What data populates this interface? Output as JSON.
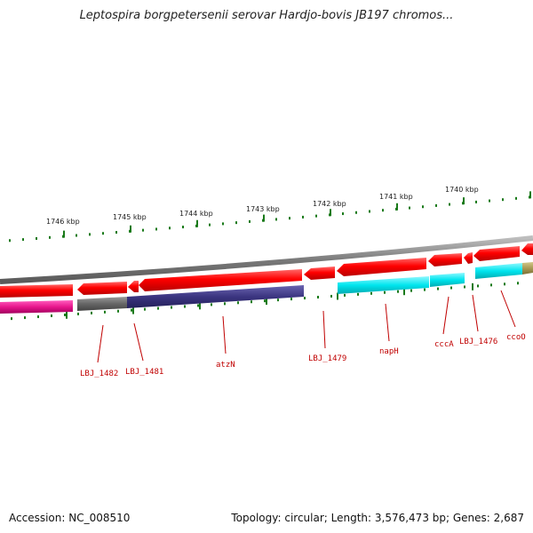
{
  "title": "Leptospira borgpetersenii serovar Hardjo-bovis JB197 chromos...",
  "footer": {
    "accession": "Accession: NC_008510",
    "summary": "Topology: circular; Length: 3,576,473 bp; Genes: 2,687"
  },
  "ruler_labels": [
    "1746 kbp",
    "1745 kbp",
    "1744 kbp",
    "1743 kbp",
    "1742 kbp",
    "1741 kbp",
    "1740 kbp"
  ],
  "gene_labels": [
    "LBJ_1482",
    "LBJ_1481",
    "atzN",
    "LBJ_1479",
    "napH",
    "cccA",
    "LBJ_1476",
    "ccoO"
  ],
  "colors": {
    "cds": "#ee1111",
    "backbone": "#888888",
    "ruler_ticks": "#1a7a1a",
    "label_text": "#c00000",
    "magenta": "#e8168c",
    "gray_feature": "#666666",
    "navy_feature": "#3b3580",
    "cyan_feature": "#00e5ee",
    "olive_feature": "#a89a55"
  }
}
